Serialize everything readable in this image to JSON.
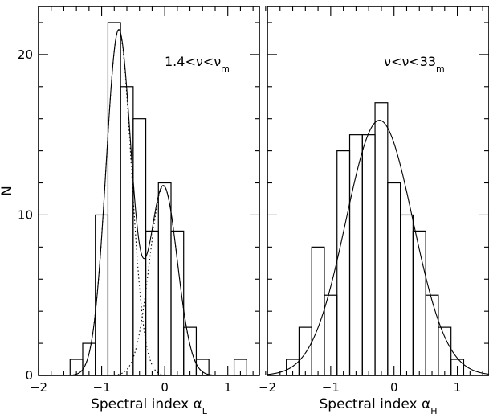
{
  "chart_data": [
    {
      "type": "bar",
      "panel": "left",
      "annotation": {
        "base": "1.4<ν<ν",
        "sub": "m"
      },
      "xlabel": {
        "base": "Spectral index α",
        "sub": "L"
      },
      "ylabel": "N",
      "xlim": [
        -2,
        1.5
      ],
      "ylim": [
        0,
        23
      ],
      "x_ticks": [
        -2,
        -1,
        0,
        1
      ],
      "y_ticks": [
        0,
        10,
        20
      ],
      "bin_width": 0.2,
      "bin_edges": [
        -1.5,
        -1.3,
        -1.1,
        -0.9,
        -0.7,
        -0.5,
        -0.3,
        -0.1,
        0.1,
        0.3,
        0.5,
        0.7,
        0.9,
        1.1,
        1.3
      ],
      "counts": [
        1,
        2,
        10,
        22,
        18,
        16,
        9,
        12,
        9,
        3,
        1,
        0,
        0,
        1
      ],
      "fit": {
        "total": "solid",
        "components": [
          {
            "mu": -0.73,
            "sigma": 0.2,
            "amp": 21.5,
            "style": "dotted"
          },
          {
            "mu": -0.02,
            "sigma": 0.22,
            "amp": 11.8,
            "style": "dotted"
          }
        ]
      }
    },
    {
      "type": "bar",
      "panel": "right",
      "annotation": {
        "base": "ν<ν<33",
        "sub": "m"
      },
      "xlabel": {
        "base": "Spectral index α",
        "sub": "H"
      },
      "ylabel": "",
      "xlim": [
        -2,
        1.5
      ],
      "ylim": [
        0,
        23
      ],
      "x_ticks": [
        -2,
        -1,
        0,
        1
      ],
      "y_ticks": [
        0,
        10,
        20
      ],
      "bin_width": 0.2,
      "bin_edges": [
        -1.7,
        -1.5,
        -1.3,
        -1.1,
        -0.9,
        -0.7,
        -0.5,
        -0.3,
        -0.1,
        0.1,
        0.3,
        0.5,
        0.7,
        0.9,
        1.1
      ],
      "counts": [
        1,
        3,
        8,
        5,
        14,
        15,
        15,
        17,
        12,
        10,
        9,
        5,
        3,
        1
      ],
      "fit": {
        "total": "solid",
        "components": [
          {
            "mu": -0.23,
            "sigma": 0.53,
            "amp": 15.9,
            "style": "solid"
          }
        ]
      }
    }
  ]
}
